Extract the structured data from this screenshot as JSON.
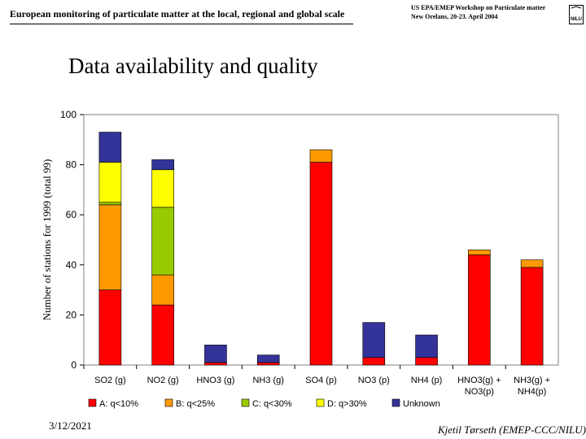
{
  "header": {
    "left_title": "European monitoring of particulate matter at the local, regional and global scale",
    "right_line1": "US EPA/EMEP Workshop on Particulate matter",
    "right_line2": "New Orelans, 20-23. April 2004",
    "logo_text": "NILU"
  },
  "slide_title": "Data availability and quality",
  "footer": {
    "date": "3/12/2021",
    "author": "Kjetil Tørseth (EMEP-CCC/NILU)"
  },
  "colors": {
    "A": "#ff0000",
    "B": "#ff9900",
    "C": "#99cc00",
    "D": "#ffff00",
    "Unknown": "#333399",
    "plot_bg": "#ffffff",
    "frame": "#808080"
  },
  "chart_data": {
    "type": "bar",
    "stacked": true,
    "title": "",
    "xlabel": "",
    "ylabel": "Number of stations for 1999 (total 99)",
    "ylim": [
      0,
      100
    ],
    "yticks": [
      "0",
      "20",
      "40",
      "60",
      "80",
      "100"
    ],
    "grid": false,
    "legend_position": "bottom",
    "categories": [
      [
        "SO2 (g)"
      ],
      [
        "NO2 (g)"
      ],
      [
        "HNO3 (g)"
      ],
      [
        "NH3 (g)"
      ],
      [
        "SO4 (p)"
      ],
      [
        "NO3 (p)"
      ],
      [
        "NH4 (p)"
      ],
      [
        "HNO3(g) +",
        "NO3(p)"
      ],
      [
        "NH3(g) +",
        "NH4(p)"
      ]
    ],
    "series": [
      {
        "key": "A",
        "name": "A: q<10%",
        "values": [
          30,
          24,
          1,
          1,
          81,
          3,
          3,
          44,
          39
        ]
      },
      {
        "key": "B",
        "name": "B: q<25%",
        "values": [
          34,
          12,
          0,
          0,
          5,
          0,
          0,
          2,
          3
        ]
      },
      {
        "key": "C",
        "name": "C: q<30%",
        "values": [
          1,
          27,
          0,
          0,
          0,
          0,
          0,
          0,
          0
        ]
      },
      {
        "key": "D",
        "name": "D: q>30%",
        "values": [
          16,
          15,
          0,
          0,
          0,
          0,
          0,
          0,
          0
        ]
      },
      {
        "key": "Unknown",
        "name": "Unknown",
        "values": [
          12,
          4,
          7,
          3,
          0,
          14,
          9,
          0,
          0
        ]
      }
    ]
  }
}
